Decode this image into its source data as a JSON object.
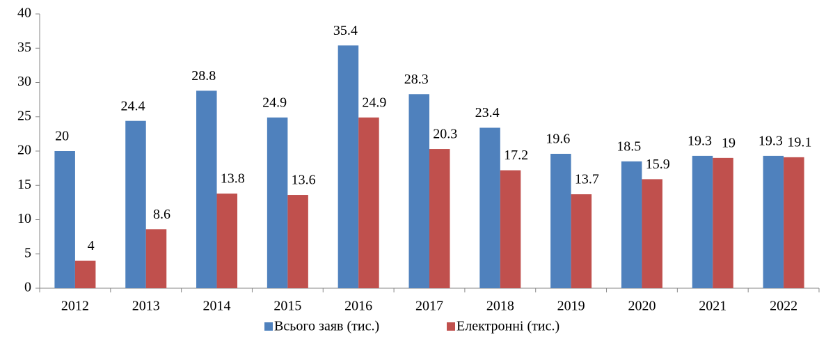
{
  "chart_data": {
    "type": "bar",
    "categories": [
      "2012",
      "2013",
      "2014",
      "2015",
      "2016",
      "2017",
      "2018",
      "2019",
      "2020",
      "2021",
      "2022"
    ],
    "series": [
      {
        "name": "Всього заяв (тис.)",
        "color": "#4f81bd",
        "values": [
          20,
          24.4,
          28.8,
          24.9,
          35.4,
          28.3,
          23.4,
          19.6,
          18.5,
          19.3,
          19.3
        ]
      },
      {
        "name": "Електронні (тис.)",
        "color": "#c0504d",
        "values": [
          4,
          8.6,
          13.8,
          13.6,
          24.9,
          20.3,
          17.2,
          13.7,
          15.9,
          19,
          19.1
        ]
      }
    ],
    "ylim": [
      0,
      40
    ],
    "yticks": [
      0,
      5,
      10,
      15,
      20,
      25,
      30,
      35,
      40
    ],
    "grid": false,
    "legend": "bottom"
  }
}
